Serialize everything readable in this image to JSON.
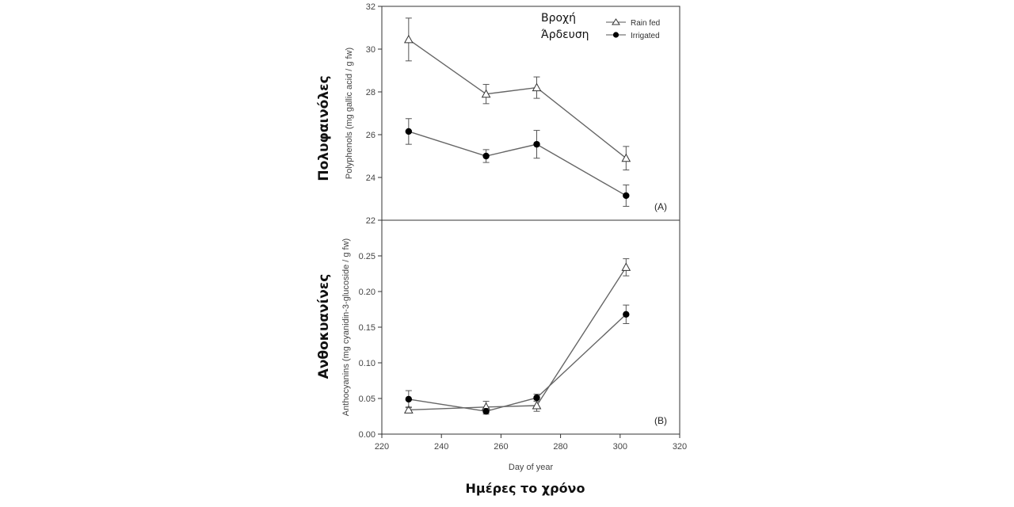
{
  "figure": {
    "greek_ylabel_top": "Πολυφαινόλες",
    "greek_ylabel_bottom": "Ανθοκυανίνες",
    "greek_xlabel": "Ημέρες το χρόνο",
    "greek_legend_rain": "Βροχή",
    "greek_legend_irrigated": "Άρδευση"
  },
  "chart_data": [
    {
      "type": "line",
      "panel_label": "(A)",
      "ylabel": "Polyphenols (mg gallic acid / g fw)",
      "xlabel": "",
      "xlim": [
        220,
        320
      ],
      "ylim": [
        22,
        32
      ],
      "yticks": [
        22,
        24,
        26,
        28,
        30,
        32
      ],
      "legend": "top-right",
      "series": [
        {
          "name": "Rain fed",
          "marker": "open-triangle",
          "x": [
            229,
            255,
            272,
            302
          ],
          "y": [
            30.45,
            27.9,
            28.2,
            24.9
          ],
          "err": [
            1.0,
            0.45,
            0.5,
            0.55
          ]
        },
        {
          "name": "Irrigated",
          "marker": "filled-circle",
          "x": [
            229,
            255,
            272,
            302
          ],
          "y": [
            26.15,
            25.0,
            25.55,
            23.15
          ],
          "err": [
            0.6,
            0.3,
            0.65,
            0.5
          ]
        }
      ]
    },
    {
      "type": "line",
      "panel_label": "(B)",
      "ylabel": "Anthocyanins (mg cyanidin-3-glucoside / g fw)",
      "xlabel": "Day of year",
      "xlim": [
        220,
        320
      ],
      "ylim": [
        0,
        0.3
      ],
      "yticks": [
        "0.00",
        "0.05",
        "0.10",
        "0.15",
        "0.20",
        "0.25"
      ],
      "xticks": [
        220,
        240,
        260,
        280,
        300,
        320
      ],
      "series": [
        {
          "name": "Rain fed",
          "marker": "open-triangle",
          "x": [
            229,
            255,
            272,
            302
          ],
          "y": [
            0.034,
            0.038,
            0.04,
            0.234
          ],
          "err": [
            0.004,
            0.008,
            0.008,
            0.012
          ]
        },
        {
          "name": "Irrigated",
          "marker": "filled-circle",
          "x": [
            229,
            255,
            272,
            302
          ],
          "y": [
            0.049,
            0.032,
            0.051,
            0.168
          ],
          "err": [
            0.012,
            0.004,
            0.005,
            0.013
          ]
        }
      ]
    }
  ]
}
